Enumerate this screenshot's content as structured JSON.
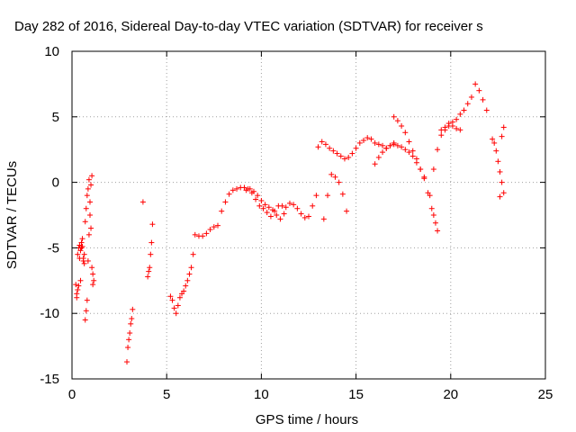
{
  "chart_data": {
    "type": "scatter",
    "title": "Day 282 of 2016, Sidereal Day-to-day VTEC variation (SDTVAR) for receiver s",
    "xlabel": "GPS time / hours",
    "ylabel": "SDTVAR / TECUs",
    "xlim": [
      0,
      25
    ],
    "ylim": [
      -15,
      10
    ],
    "x_ticks": [
      0,
      5,
      10,
      15,
      20,
      25
    ],
    "y_ticks": [
      -15,
      -10,
      -5,
      0,
      5,
      10
    ],
    "x_tick_labels": [
      "0",
      "5",
      "10",
      "15",
      "20",
      "25"
    ],
    "y_tick_labels": [
      "-15",
      "-10",
      "-5",
      "0",
      "5",
      "10"
    ],
    "grid": true,
    "legend": "none",
    "marker": "+",
    "series": [
      {
        "color": "#ff0000",
        "x": [
          0.2,
          0.25,
          0.3,
          0.35,
          0.4,
          0.45,
          0.5,
          0.55,
          0.6,
          0.65,
          0.7,
          0.75,
          0.8,
          0.85,
          0.9,
          0.95,
          1.0,
          1.05,
          1.1,
          1.15,
          0.25,
          0.3,
          0.35,
          0.4,
          0.45,
          0.5,
          0.55,
          0.6,
          0.65,
          0.7,
          0.75,
          0.8,
          0.85,
          0.9,
          0.95,
          1.0,
          1.05,
          1.1,
          2.9,
          2.95,
          3.0,
          3.05,
          3.1,
          3.15,
          3.2,
          3.75,
          4.0,
          4.05,
          4.1,
          4.15,
          4.2,
          4.25,
          5.2,
          5.3,
          5.4,
          5.5,
          5.6,
          5.7,
          5.8,
          5.9,
          6.0,
          6.1,
          6.2,
          6.3,
          6.4,
          6.5,
          6.7,
          6.9,
          7.1,
          7.3,
          7.5,
          7.7,
          7.9,
          8.1,
          8.3,
          8.5,
          8.7,
          8.9,
          9.1,
          9.3,
          9.5,
          9.7,
          9.9,
          10.1,
          10.3,
          10.5,
          10.7,
          10.9,
          11.1,
          9.2,
          9.4,
          9.6,
          9.8,
          10.0,
          10.2,
          10.4,
          10.6,
          10.8,
          11.0,
          11.2,
          11.3,
          11.5,
          11.7,
          11.9,
          12.1,
          12.3,
          12.5,
          12.7,
          12.9,
          13.0,
          13.2,
          13.4,
          13.6,
          13.8,
          14.0,
          14.2,
          14.4,
          14.6,
          14.8,
          15.0,
          15.2,
          15.4,
          15.6,
          15.8,
          16.0,
          16.2,
          16.4,
          16.6,
          16.8,
          17.0,
          13.3,
          13.5,
          13.7,
          13.9,
          14.1,
          14.3,
          14.5,
          16.0,
          16.2,
          16.4,
          16.6,
          16.8,
          17.0,
          17.2,
          17.4,
          17.6,
          17.8,
          18.0,
          18.2,
          18.4,
          18.6,
          18.8,
          17.0,
          17.2,
          17.4,
          17.6,
          17.8,
          18.0,
          18.2,
          18.4,
          18.6,
          19.0,
          19.1,
          19.2,
          19.3,
          18.9,
          19.1,
          19.3,
          19.5,
          19.7,
          19.9,
          20.1,
          20.3,
          20.5,
          20.7,
          20.9,
          21.1,
          21.3,
          21.5,
          21.7,
          21.9,
          19.5,
          19.7,
          19.9,
          20.1,
          20.3,
          20.5,
          22.2,
          22.3,
          22.4,
          22.5,
          22.6,
          22.7,
          22.8,
          22.6,
          22.7,
          22.8
        ],
        "y": [
          -7.8,
          -8.5,
          -5.5,
          -5.0,
          -4.8,
          -7.5,
          -5.0,
          -4.3,
          -6.0,
          -5.5,
          -3.0,
          -2.0,
          -1.0,
          -0.5,
          0.2,
          -1.5,
          -3.5,
          -6.5,
          -7.0,
          -7.5,
          -8.8,
          -8.2,
          -7.9,
          -5.8,
          -5.2,
          -4.6,
          -4.9,
          -5.8,
          -6.2,
          -10.5,
          -9.8,
          -9.0,
          -6.0,
          -4.0,
          -2.5,
          -0.2,
          0.5,
          -7.8,
          -13.7,
          -12.6,
          -12.0,
          -11.5,
          -10.8,
          -10.4,
          -9.7,
          -1.5,
          -7.2,
          -6.8,
          -6.5,
          -5.5,
          -4.6,
          -3.2,
          -8.7,
          -9.0,
          -9.6,
          -10.0,
          -9.4,
          -8.8,
          -8.5,
          -8.3,
          -7.9,
          -7.5,
          -7.0,
          -6.5,
          -5.5,
          -4.0,
          -4.1,
          -4.1,
          -3.9,
          -3.6,
          -3.4,
          -3.3,
          -2.2,
          -1.5,
          -0.9,
          -0.6,
          -0.5,
          -0.4,
          -0.4,
          -0.5,
          -0.8,
          -1.3,
          -1.8,
          -2.0,
          -2.3,
          -2.6,
          -2.2,
          -1.8,
          -1.8,
          -0.6,
          -0.5,
          -0.7,
          -1.0,
          -1.4,
          -1.7,
          -1.9,
          -2.1,
          -2.5,
          -2.8,
          -2.4,
          -1.9,
          -1.6,
          -1.7,
          -2.0,
          -2.4,
          -2.7,
          -2.6,
          -1.8,
          -1.0,
          2.7,
          3.1,
          2.9,
          2.6,
          2.4,
          2.2,
          2.0,
          1.8,
          1.9,
          2.2,
          2.6,
          3.0,
          3.2,
          3.4,
          3.3,
          3.0,
          2.9,
          2.8,
          2.6,
          2.8,
          3.0,
          -2.8,
          -1.0,
          0.6,
          0.4,
          0.0,
          -0.9,
          -2.2,
          1.4,
          1.9,
          2.3,
          2.6,
          2.8,
          2.9,
          2.8,
          2.7,
          2.5,
          2.3,
          2.0,
          1.5,
          1.0,
          0.3,
          -0.8,
          5.0,
          4.7,
          4.3,
          3.8,
          3.1,
          2.4,
          1.8,
          1.0,
          0.4,
          -2.0,
          -2.5,
          -3.1,
          -3.7,
          -1.0,
          1.0,
          2.5,
          3.6,
          4.0,
          4.3,
          4.6,
          4.8,
          5.2,
          5.5,
          6.0,
          6.5,
          7.5,
          7.0,
          6.3,
          5.5,
          4.0,
          4.2,
          4.5,
          4.3,
          4.1,
          4.0,
          3.3,
          3.0,
          2.4,
          1.6,
          0.8,
          0.0,
          -0.8,
          -1.1,
          3.5,
          4.2
        ]
      }
    ]
  }
}
